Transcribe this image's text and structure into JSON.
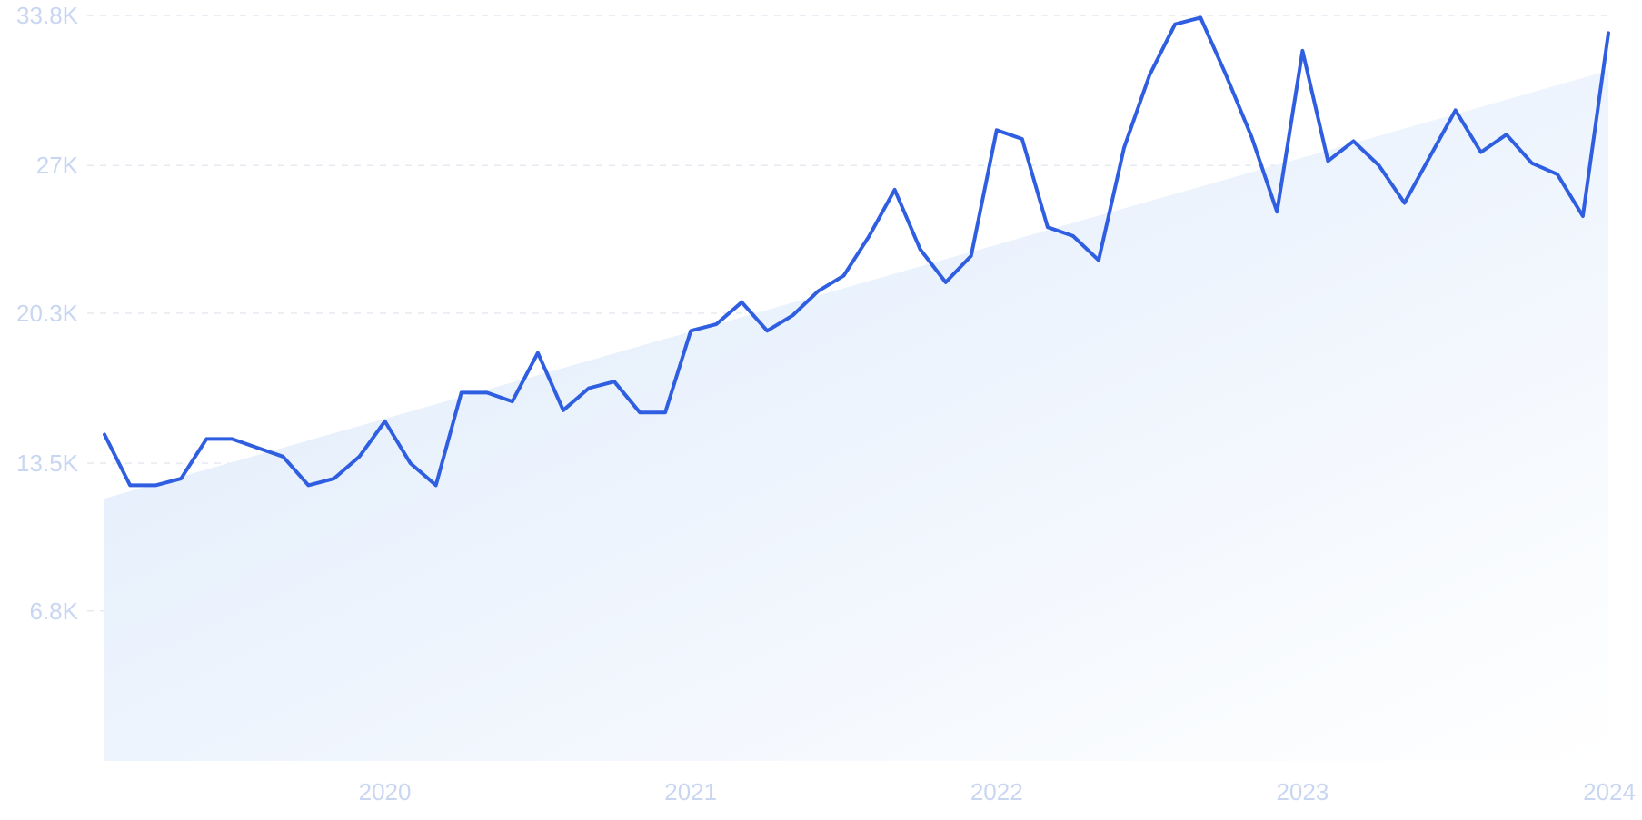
{
  "chart_data": {
    "type": "line",
    "title": "",
    "xlabel": "",
    "ylabel": "",
    "y_ticks": [
      {
        "value": 6800,
        "label": "6.8K"
      },
      {
        "value": 13500,
        "label": "13.5K"
      },
      {
        "value": 20300,
        "label": "20.3K"
      },
      {
        "value": 27000,
        "label": "27K"
      },
      {
        "value": 33800,
        "label": "33.8K"
      }
    ],
    "x_ticks": [
      {
        "value": "2020-01",
        "label": "2020"
      },
      {
        "value": "2021-01",
        "label": "2021"
      },
      {
        "value": "2022-01",
        "label": "2022"
      },
      {
        "value": "2023-01",
        "label": "2023"
      },
      {
        "value": "2024-01",
        "label": "2024"
      }
    ],
    "ylim": [
      0,
      33800
    ],
    "xlim": [
      "2019-02",
      "2024-01"
    ],
    "grid": true,
    "legend": "none",
    "colors": {
      "line": "#2f5fe0",
      "trend_fill": "#e1ecfb",
      "grid": "#dde3ee",
      "tick_text": "#c9d6f2"
    },
    "trend": {
      "start": {
        "x": "2019-02",
        "y": 11900
      },
      "end": {
        "x": "2024-01",
        "y": 31300
      }
    },
    "series": [
      {
        "x": [
          "2019-02",
          "2019-03",
          "2019-04",
          "2019-05",
          "2019-06",
          "2019-07",
          "2019-08",
          "2019-09",
          "2019-10",
          "2019-11",
          "2019-12",
          "2020-01",
          "2020-02",
          "2020-03",
          "2020-04",
          "2020-05",
          "2020-06",
          "2020-07",
          "2020-08",
          "2020-09",
          "2020-10",
          "2020-11",
          "2020-12",
          "2021-01",
          "2021-02",
          "2021-03",
          "2021-04",
          "2021-05",
          "2021-06",
          "2021-07",
          "2021-08",
          "2021-09",
          "2021-10",
          "2021-11",
          "2021-12",
          "2022-01",
          "2022-02",
          "2022-03",
          "2022-04",
          "2022-05",
          "2022-06",
          "2022-07",
          "2022-08",
          "2022-09",
          "2022-10",
          "2022-11",
          "2022-12",
          "2023-01",
          "2023-02",
          "2023-03",
          "2023-04",
          "2023-05",
          "2023-06",
          "2023-07",
          "2023-08",
          "2023-09",
          "2023-10",
          "2023-11",
          "2023-12",
          "2024-01"
        ],
        "values": [
          14800,
          12500,
          12500,
          12800,
          14600,
          14600,
          14200,
          13800,
          12500,
          12800,
          13800,
          15400,
          13500,
          12500,
          16700,
          16700,
          16300,
          18500,
          15900,
          16900,
          17200,
          15800,
          15800,
          19500,
          19800,
          20800,
          19500,
          20200,
          21300,
          22000,
          23800,
          25900,
          23200,
          21700,
          22900,
          28600,
          28200,
          24200,
          23800,
          22700,
          27800,
          31100,
          33400,
          33700,
          31100,
          28300,
          24900,
          32200,
          27200,
          28100,
          27000,
          25300,
          27400,
          29500,
          27600,
          28400,
          27100,
          26600,
          24700,
          33000
        ]
      }
    ]
  }
}
